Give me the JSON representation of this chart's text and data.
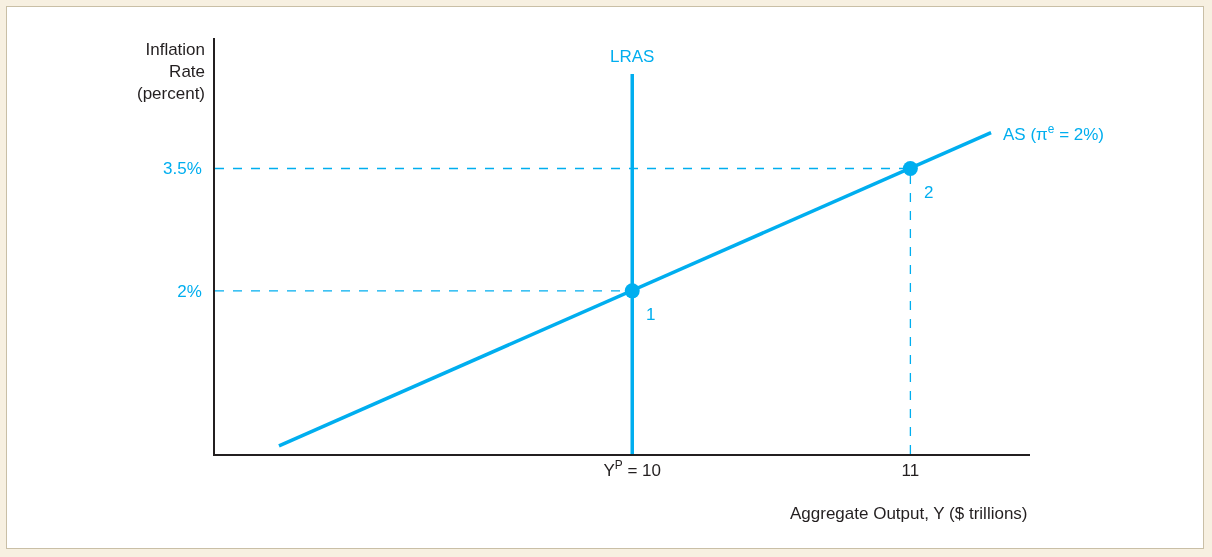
{
  "chart_data": {
    "type": "line",
    "xlabel": "Aggregate Output, Y ($ trillions)",
    "ylabel": "Inflation\nRate\n(percent)",
    "xlim": [
      8.5,
      11.43
    ],
    "ylim": [
      0,
      5.1
    ],
    "xticks": [
      {
        "value": 10,
        "label": "Y$^{P}$ = 10"
      },
      {
        "value": 11,
        "label": "11"
      }
    ],
    "yticks": [
      {
        "value": 2,
        "label": "2%"
      },
      {
        "value": 3.5,
        "label": "3.5%"
      }
    ],
    "grid": false,
    "legend": false,
    "series": [
      {
        "line_style": "dashed",
        "color": "#00aeef",
        "x": [
          8.5,
          10
        ],
        "values": [
          2,
          2
        ]
      },
      {
        "line_style": "dashed",
        "color": "#00aeef",
        "x": [
          8.5,
          11
        ],
        "values": [
          3.5,
          3.5
        ]
      },
      {
        "line_style": "dashed",
        "color": "#00aeef",
        "x": [
          11,
          11
        ],
        "values": [
          0,
          3.5
        ]
      },
      {
        "name": "LRAS",
        "color": "#00aeef",
        "x": [
          10,
          10
        ],
        "values": [
          0,
          4.66
        ]
      },
      {
        "name": "AS (π$^{e}$ = 2%)",
        "color": "#00aeef",
        "x": [
          8.73,
          11.29
        ],
        "values": [
          0.1,
          3.94
        ]
      },
      {
        "type": "scatter",
        "marker": "circle",
        "color": "#00aeef",
        "x": [
          10,
          11
        ],
        "values": [
          2,
          3.5
        ]
      }
    ],
    "annotations": [
      {
        "text": "1",
        "x": 10,
        "y": 2
      },
      {
        "text": "2",
        "x": 11,
        "y": 3.5
      }
    ]
  }
}
